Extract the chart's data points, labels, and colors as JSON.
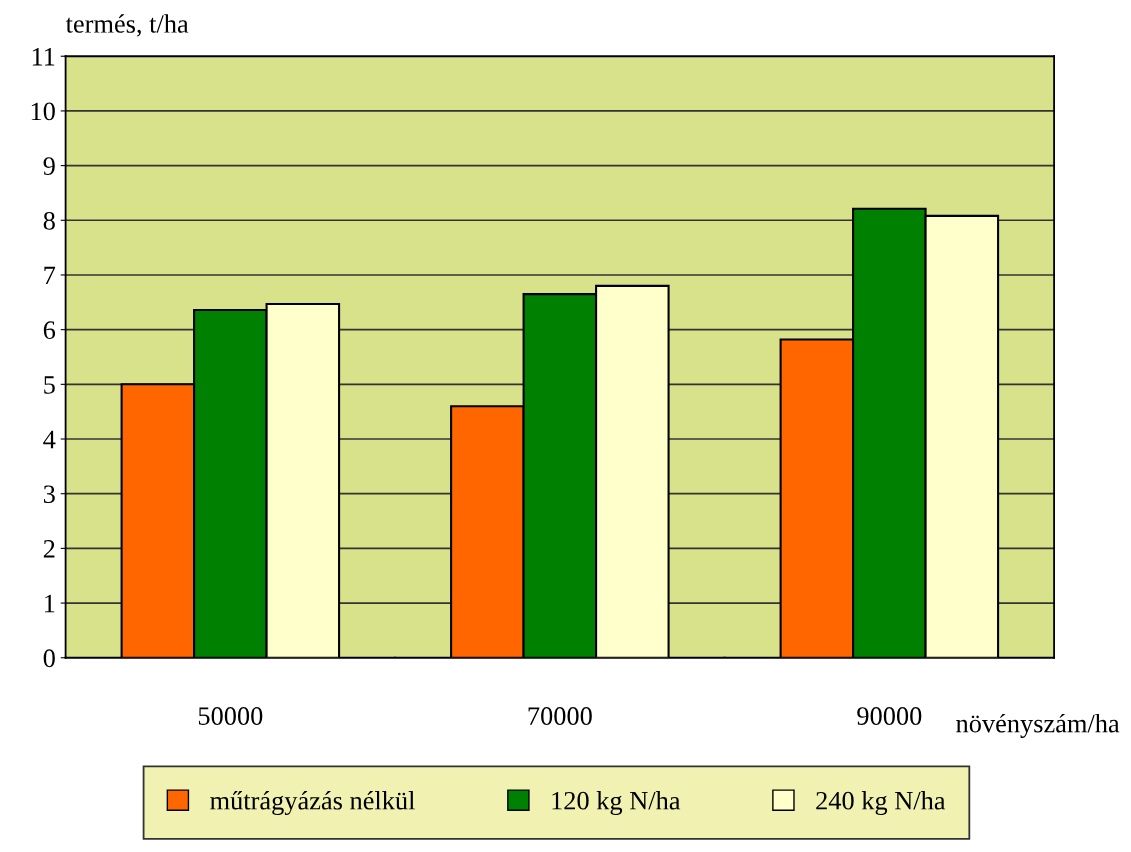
{
  "chart_data": {
    "type": "bar",
    "ylabel": "termés, t/ha",
    "xlabel": "növényszám/ha",
    "categories": [
      "50000",
      "70000",
      "90000"
    ],
    "series": [
      {
        "name": "műtrágyázás nélkül",
        "color": "#ff6600",
        "values": [
          5.0,
          4.6,
          5.82
        ]
      },
      {
        "name": "120 kg N/ha",
        "color": "#008000",
        "values": [
          6.36,
          6.65,
          8.21
        ]
      },
      {
        "name": "240 kg N/ha",
        "color": "#ffffcc",
        "values": [
          6.47,
          6.8,
          8.08
        ]
      }
    ],
    "ylim": [
      0,
      11
    ],
    "yticks": [
      0,
      1,
      2,
      3,
      4,
      5,
      6,
      7,
      8,
      9,
      10,
      11
    ],
    "grid": "y",
    "legend": "bottom"
  }
}
